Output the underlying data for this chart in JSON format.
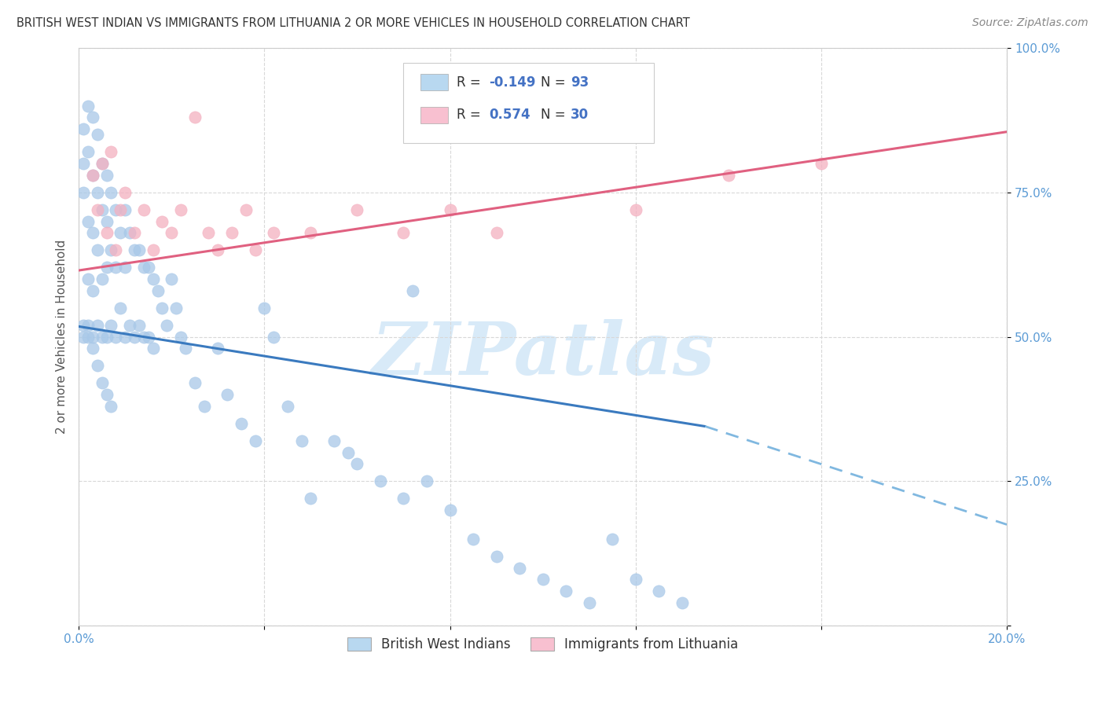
{
  "title": "BRITISH WEST INDIAN VS IMMIGRANTS FROM LITHUANIA 2 OR MORE VEHICLES IN HOUSEHOLD CORRELATION CHART",
  "source": "Source: ZipAtlas.com",
  "ylabel": "2 or more Vehicles in Household",
  "x_min": 0.0,
  "x_max": 0.2,
  "y_min": 0.0,
  "y_max": 1.0,
  "blue_dot_color": "#a8c8e8",
  "pink_dot_color": "#f4b0c0",
  "blue_line_color": "#3a7abf",
  "pink_line_color": "#e06080",
  "dashed_line_color": "#80b8e0",
  "legend_blue_patch": "#b8d8f0",
  "legend_pink_patch": "#f8c0d0",
  "watermark_color": "#d8eaf8",
  "title_color": "#333333",
  "source_color": "#888888",
  "axis_tick_color": "#5b9bd5",
  "grid_color": "#d8d8d8",
  "ylabel_color": "#555555",
  "R_N_color": "#4472c4",
  "R_label_color": "#333333",
  "blue_line_x0": 0.0,
  "blue_line_x1": 0.135,
  "blue_line_y0": 0.518,
  "blue_line_y1": 0.345,
  "dashed_line_x0": 0.135,
  "dashed_line_x1": 0.2,
  "dashed_line_y0": 0.345,
  "dashed_line_y1": 0.175,
  "pink_line_x0": 0.0,
  "pink_line_x1": 0.2,
  "pink_line_y0": 0.615,
  "pink_line_y1": 0.855,
  "blue_R": "-0.149",
  "blue_N": "93",
  "pink_R": "0.574",
  "pink_N": "30",
  "legend_label_blue": "British West Indians",
  "legend_label_pink": "Immigrants from Lithuania",
  "watermark_text": "ZIPatlas"
}
